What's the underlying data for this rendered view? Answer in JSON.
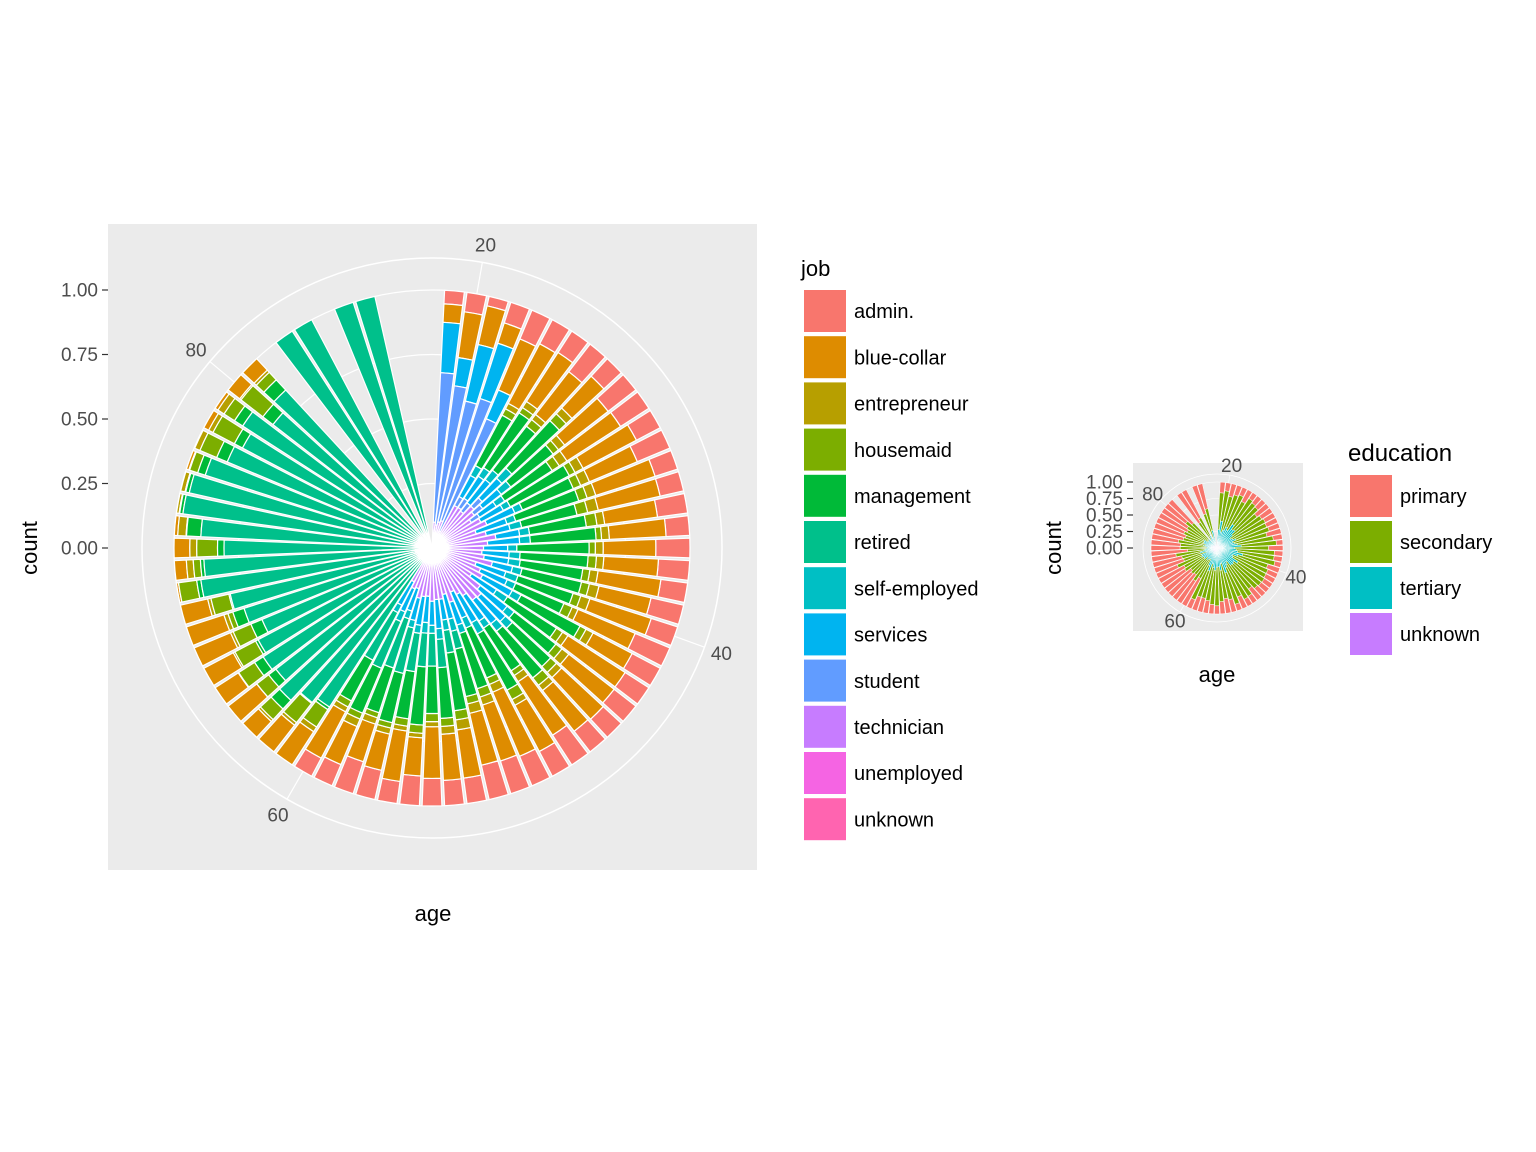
{
  "chart_data": [
    {
      "type": "bar",
      "coord": "polar",
      "position": "fill",
      "xlabel": "age",
      "ylabel": "count",
      "y_ticks": [
        "0.00",
        "0.25",
        "0.50",
        "0.75",
        "1.00"
      ],
      "y_tick_values": [
        0,
        0.25,
        0.5,
        0.75,
        1.0
      ],
      "x_ticks": [
        "20",
        "40",
        "60",
        "80"
      ],
      "x_tick_values": [
        20,
        40,
        60,
        80
      ],
      "xlim": [
        18,
        90
      ],
      "legend_title": "job",
      "legend_position": "right",
      "panel_background": "#ebebeb",
      "categories": [
        "admin.",
        "blue-collar",
        "entrepreneur",
        "housemaid",
        "management",
        "retired",
        "self-employed",
        "services",
        "student",
        "technician",
        "unemployed",
        "unknown"
      ],
      "colors": [
        "#F8766D",
        "#DE8C00",
        "#B79F00",
        "#7CAE00",
        "#00BA38",
        "#00C08B",
        "#00BFC4",
        "#00B4F0",
        "#619CFF",
        "#C77CFF",
        "#F564E3",
        "#FF64B0"
      ],
      "ages": [
        19,
        20,
        21,
        22,
        23,
        24,
        25,
        26,
        27,
        28,
        29,
        30,
        31,
        32,
        33,
        34,
        35,
        36,
        37,
        38,
        39,
        40,
        41,
        42,
        43,
        44,
        45,
        46,
        47,
        48,
        49,
        50,
        51,
        52,
        53,
        54,
        55,
        56,
        57,
        58,
        59,
        60,
        61,
        62,
        63,
        64,
        65,
        66,
        67,
        68,
        69,
        70,
        71,
        72,
        73,
        74,
        75,
        76,
        77,
        78,
        79,
        80,
        81,
        83,
        84,
        86,
        87
      ],
      "bar_tops": [
        1,
        1,
        1,
        1,
        1,
        1,
        1,
        1,
        1,
        1,
        1,
        1,
        1,
        1,
        1,
        1,
        1,
        1,
        1,
        1,
        1,
        1,
        1,
        1,
        1,
        1,
        1,
        1,
        1,
        1,
        1,
        1,
        1,
        1,
        1,
        1,
        1,
        1,
        1,
        1,
        1,
        1,
        1,
        1,
        1,
        1,
        1,
        1,
        1,
        1,
        1,
        1,
        1,
        1,
        1,
        1,
        1,
        1,
        1,
        1,
        1,
        1,
        1,
        1,
        1,
        1,
        1
      ],
      "note_values": "proportions by job within each age bar (approximate, read from colours)"
    },
    {
      "type": "bar",
      "coord": "polar",
      "position": "fill",
      "xlabel": "age",
      "ylabel": "count",
      "y_ticks": [
        "0.00",
        "0.25",
        "0.50",
        "0.75",
        "1.00"
      ],
      "y_tick_values": [
        0,
        0.25,
        0.5,
        0.75,
        1.0
      ],
      "x_ticks": [
        "20",
        "40",
        "60",
        "80"
      ],
      "x_tick_values": [
        20,
        40,
        60,
        80
      ],
      "xlim": [
        18,
        90
      ],
      "legend_title": "education",
      "legend_position": "right",
      "panel_background": "#ebebeb",
      "categories": [
        "primary",
        "secondary",
        "tertiary",
        "unknown"
      ],
      "colors": [
        "#F8766D",
        "#7CAE00",
        "#00BFC4",
        "#C77CFF"
      ]
    }
  ]
}
